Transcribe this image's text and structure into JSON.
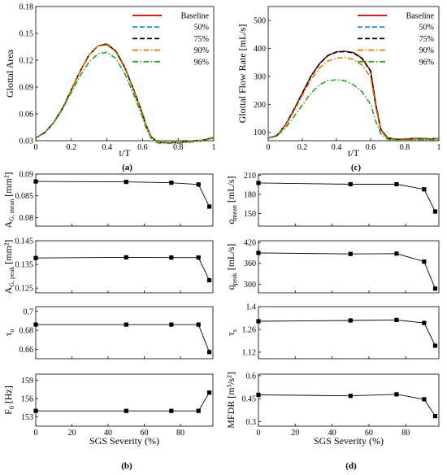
{
  "chart_data": [
    {
      "id": "a",
      "type": "line",
      "panel_label": "(a)",
      "title": "",
      "xlabel": "t/T",
      "ylabel": "Glottal Area",
      "xlim": [
        0,
        1
      ],
      "ylim": [
        0.03,
        0.18
      ],
      "xticks": [
        "0",
        "0.2",
        "0.4",
        "0.6",
        "0.8",
        "1"
      ],
      "yticks": [
        "0.03",
        "0.06",
        "0.09",
        "0.12",
        "0.15",
        "0.18"
      ],
      "grid": false,
      "legend_position": "top-right",
      "x": [
        0,
        0.05,
        0.1,
        0.15,
        0.2,
        0.25,
        0.3,
        0.35,
        0.4,
        0.45,
        0.5,
        0.55,
        0.6,
        0.62,
        0.65,
        0.68,
        0.7,
        0.75,
        0.8,
        0.85,
        0.9,
        0.95,
        1.0
      ],
      "series": [
        {
          "name": "Baseline",
          "color": "#cc0000",
          "dash": "solid",
          "values": [
            0.033,
            0.039,
            0.05,
            0.066,
            0.087,
            0.108,
            0.126,
            0.136,
            0.138,
            0.13,
            0.112,
            0.087,
            0.06,
            0.047,
            0.034,
            0.029,
            0.028,
            0.028,
            0.028,
            0.029,
            0.03,
            0.031,
            0.034
          ]
        },
        {
          "name": "50%",
          "color": "#1f8fd6",
          "dash": "dashed",
          "values": [
            0.033,
            0.039,
            0.05,
            0.066,
            0.087,
            0.108,
            0.126,
            0.136,
            0.138,
            0.13,
            0.112,
            0.087,
            0.06,
            0.047,
            0.034,
            0.029,
            0.028,
            0.028,
            0.028,
            0.029,
            0.03,
            0.031,
            0.034
          ]
        },
        {
          "name": "75%",
          "color": "#000000",
          "dash": "dashed",
          "values": [
            0.033,
            0.039,
            0.05,
            0.066,
            0.087,
            0.108,
            0.126,
            0.136,
            0.138,
            0.13,
            0.112,
            0.087,
            0.06,
            0.047,
            0.034,
            0.029,
            0.028,
            0.028,
            0.028,
            0.029,
            0.03,
            0.031,
            0.034
          ]
        },
        {
          "name": "90%",
          "color": "#e07b00",
          "dash": "dashdot",
          "values": [
            0.033,
            0.039,
            0.05,
            0.066,
            0.087,
            0.108,
            0.126,
            0.136,
            0.137,
            0.129,
            0.111,
            0.086,
            0.059,
            0.046,
            0.034,
            0.029,
            0.028,
            0.028,
            0.028,
            0.029,
            0.03,
            0.031,
            0.034
          ]
        },
        {
          "name": "96%",
          "color": "#2ea02e",
          "dash": "dashdot",
          "values": [
            0.033,
            0.039,
            0.05,
            0.065,
            0.084,
            0.103,
            0.118,
            0.127,
            0.129,
            0.122,
            0.105,
            0.082,
            0.056,
            0.044,
            0.032,
            0.028,
            0.027,
            0.027,
            0.027,
            0.028,
            0.029,
            0.03,
            0.033
          ]
        }
      ]
    },
    {
      "id": "c",
      "type": "line",
      "panel_label": "(c)",
      "title": "",
      "xlabel": "t/T",
      "ylabel": "Glottal Flow Rate [mL/s]",
      "xlim": [
        0,
        1
      ],
      "ylim": [
        70,
        550
      ],
      "xticks": [
        "0",
        "0.2",
        "0.4",
        "0.6",
        "0.8",
        "1"
      ],
      "yticks": [
        "100",
        "200",
        "300",
        "400",
        "500"
      ],
      "grid": false,
      "legend_position": "top-right",
      "x": [
        0,
        0.05,
        0.1,
        0.15,
        0.2,
        0.25,
        0.3,
        0.35,
        0.4,
        0.45,
        0.5,
        0.55,
        0.6,
        0.63,
        0.66,
        0.7,
        0.75,
        0.8,
        0.85,
        0.9,
        0.95,
        1.0
      ],
      "series": [
        {
          "name": "Baseline",
          "color": "#cc0000",
          "dash": "solid",
          "values": [
            80,
            88,
            125,
            180,
            240,
            300,
            345,
            375,
            388,
            390,
            385,
            365,
            320,
            200,
            110,
            80,
            75,
            75,
            78,
            78,
            76,
            78
          ]
        },
        {
          "name": "50%",
          "color": "#1f8fd6",
          "dash": "dashed",
          "values": [
            80,
            88,
            125,
            180,
            240,
            300,
            345,
            375,
            387,
            389,
            384,
            364,
            319,
            200,
            110,
            80,
            75,
            75,
            78,
            78,
            76,
            78
          ]
        },
        {
          "name": "75%",
          "color": "#000000",
          "dash": "dashed",
          "values": [
            80,
            88,
            125,
            180,
            240,
            300,
            345,
            375,
            387,
            389,
            384,
            364,
            319,
            200,
            110,
            80,
            75,
            75,
            78,
            78,
            76,
            78
          ]
        },
        {
          "name": "90%",
          "color": "#e07b00",
          "dash": "dashdot",
          "values": [
            80,
            88,
            123,
            175,
            232,
            288,
            330,
            355,
            365,
            368,
            360,
            340,
            298,
            190,
            105,
            78,
            73,
            73,
            76,
            76,
            75,
            77
          ]
        },
        {
          "name": "96%",
          "color": "#2ea02e",
          "dash": "dashdot",
          "values": [
            80,
            86,
            115,
            155,
            198,
            240,
            270,
            285,
            288,
            284,
            270,
            245,
            200,
            140,
            95,
            75,
            70,
            70,
            74,
            74,
            73,
            75
          ]
        }
      ]
    },
    {
      "id": "b1",
      "type": "line",
      "ylabel_main": "A",
      "ylabel_sub": "G, mean",
      "ylabel_unit": " [mm²]",
      "ylim": [
        0.078,
        0.09
      ],
      "yticks": [
        "0.08",
        "0.085",
        "0.09"
      ],
      "x": [
        0,
        50,
        75,
        90,
        96
      ],
      "values": [
        0.0883,
        0.0882,
        0.088,
        0.0876,
        0.0825
      ]
    },
    {
      "id": "b2",
      "type": "line",
      "ylabel_main": "A",
      "ylabel_sub": "G, peak",
      "ylabel_unit": " [mm²]",
      "ylim": [
        0.123,
        0.145
      ],
      "yticks": [
        "0.125",
        "0.135",
        "0.145"
      ],
      "x": [
        0,
        50,
        75,
        90,
        96
      ],
      "values": [
        0.1377,
        0.138,
        0.1379,
        0.1379,
        0.1283
      ]
    },
    {
      "id": "b3",
      "type": "line",
      "ylabel_main": "τ",
      "ylabel_sub": "o",
      "ylabel_unit": "",
      "ylim": [
        0.65,
        0.705
      ],
      "yticks": [
        "0.66",
        "0.68",
        "0.7"
      ],
      "x": [
        0,
        50,
        75,
        90,
        96
      ],
      "values": [
        0.686,
        0.686,
        0.686,
        0.686,
        0.657
      ]
    },
    {
      "id": "b4",
      "type": "line",
      "ylabel_main": "F",
      "ylabel_sub": "0",
      "ylabel_unit": " [Hz]",
      "ylim": [
        151.5,
        160
      ],
      "yticks": [
        "153",
        "156",
        "159"
      ],
      "xticks": [
        "0",
        "20",
        "40",
        "60",
        "80"
      ],
      "xlabel": "SGS Severity (%)",
      "panel_label": "(b)",
      "x": [
        0,
        50,
        75,
        90,
        96
      ],
      "values": [
        154,
        154,
        154,
        154,
        157
      ]
    },
    {
      "id": "d1",
      "type": "line",
      "ylabel_main": "q",
      "ylabel_sub": "mean",
      "ylabel_unit": " [mL/s]",
      "ylim": [
        130,
        212
      ],
      "yticks": [
        "150",
        "180",
        "210"
      ],
      "x": [
        0,
        50,
        75,
        90,
        96
      ],
      "values": [
        198,
        196,
        196,
        188,
        153
      ]
    },
    {
      "id": "d2",
      "type": "line",
      "ylabel_main": "q",
      "ylabel_sub": "peak",
      "ylabel_unit": " [mL/s]",
      "ylim": [
        275,
        425
      ],
      "yticks": [
        "300",
        "360",
        "420"
      ],
      "x": [
        0,
        50,
        75,
        90,
        96
      ],
      "values": [
        390,
        387,
        388,
        365,
        287
      ]
    },
    {
      "id": "d3",
      "type": "line",
      "ylabel_main": "τ",
      "ylabel_sub": "s",
      "ylabel_unit": "",
      "ylim": [
        1.08,
        1.4
      ],
      "yticks": [
        "1.12",
        "1.26",
        "1.4"
      ],
      "x": [
        0,
        50,
        75,
        90,
        96
      ],
      "values": [
        1.31,
        1.315,
        1.318,
        1.3,
        1.16
      ]
    },
    {
      "id": "d4",
      "type": "line",
      "ylabel_main": "MFDR [m",
      "ylabel_sub": "",
      "ylabel_unit": "",
      "ylabel_text": "MFDR [m³/s²]",
      "ylim": [
        0.27,
        0.61
      ],
      "yticks": [
        "0.3",
        "0.45",
        "0.6"
      ],
      "xticks": [
        "0",
        "20",
        "40",
        "60",
        "80"
      ],
      "xlabel": "SGS Severity (%)",
      "panel_label": "(d)",
      "x": [
        0,
        50,
        75,
        90,
        96
      ],
      "values": [
        0.475,
        0.468,
        0.478,
        0.446,
        0.336
      ]
    }
  ]
}
